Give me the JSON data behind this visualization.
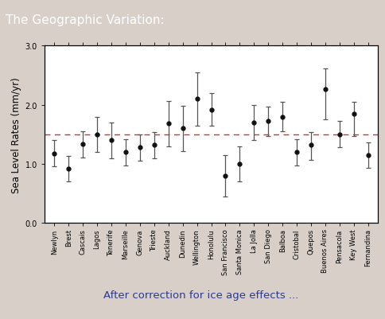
{
  "title": "The Geographic Variation:",
  "subtitle": "After correction for ice age effects ...",
  "ylabel": "Sea Level Rates (mm/yr)",
  "ylim": [
    0.0,
    3.0
  ],
  "yticks": [
    0.0,
    1.0,
    2.0,
    3.0
  ],
  "reference_line": 1.5,
  "background_color": "#d8d0c8",
  "plot_bg_color": "#ffffff",
  "title_bg_color": "#8c7b6e",
  "stations": [
    "Newlyn",
    "Brest",
    "Cascais",
    "Lagos",
    "Tenerife",
    "Marseille",
    "Genova",
    "Trieste",
    "Auckland",
    "Dunedin",
    "Wellington",
    "Honolulu",
    "San Francisco",
    "Santa Monica",
    "La Jolla",
    "San Diego",
    "Balboa",
    "Cristobal",
    "Quepos",
    "Buenos Aires",
    "Pensacola",
    "Key West",
    "Fernandina"
  ],
  "values": [
    1.18,
    0.92,
    1.33,
    1.5,
    1.4,
    1.2,
    1.28,
    1.32,
    1.68,
    1.6,
    2.1,
    1.92,
    0.8,
    1.0,
    1.7,
    1.72,
    1.8,
    1.2,
    1.32,
    2.27,
    1.5,
    1.85,
    1.15
  ],
  "yerr_low": [
    0.22,
    0.22,
    0.22,
    0.3,
    0.3,
    0.22,
    0.22,
    0.22,
    0.38,
    0.38,
    0.45,
    0.28,
    0.35,
    0.3,
    0.3,
    0.25,
    0.25,
    0.22,
    0.25,
    0.52,
    0.22,
    0.38,
    0.22
  ],
  "yerr_high": [
    0.22,
    0.22,
    0.22,
    0.3,
    0.3,
    0.22,
    0.22,
    0.22,
    0.38,
    0.38,
    0.45,
    0.28,
    0.35,
    0.3,
    0.3,
    0.25,
    0.25,
    0.22,
    0.22,
    0.35,
    0.22,
    0.2,
    0.22
  ],
  "marker_color": "#111111",
  "errorbar_color": "#555555",
  "ref_line_color": "#cc3333",
  "title_fontsize": 11,
  "subtitle_fontsize": 9.5,
  "tick_fontsize": 6.0,
  "ylabel_fontsize": 8.5
}
